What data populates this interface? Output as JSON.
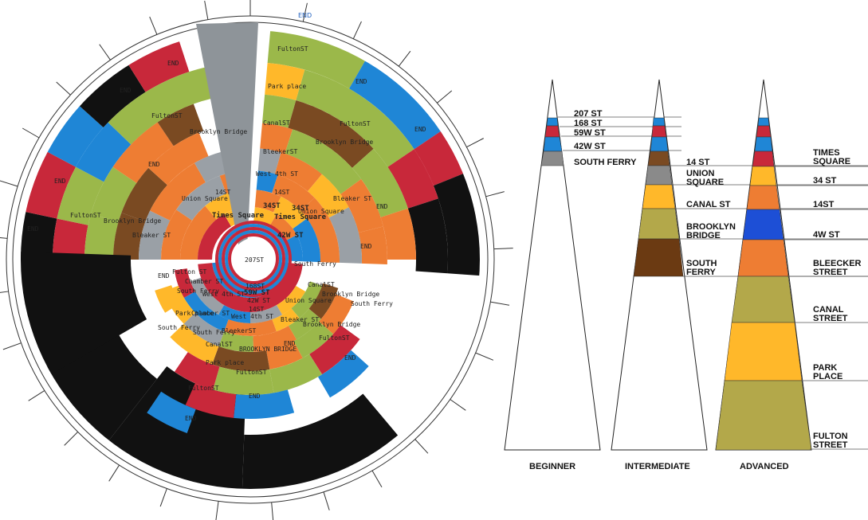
{
  "header_label": "END",
  "colors": {
    "red": "#c8283a",
    "blue": "#1f86d6",
    "green": "#9bb84a",
    "orange": "#ee7d33",
    "brown": "#7a4a22",
    "gray": "#9aa0a6",
    "yellow": "#ffb82a",
    "black": "#111111",
    "deepblue": "#1d4fd6",
    "olive": "#b3a84a",
    "darkbrown": "#6b3a12",
    "midgray": "#8a8a8a",
    "needle": "#8e9499"
  },
  "dial": {
    "center_label": "207ST",
    "rings_upper": {
      "ring1": [
        "Times Square",
        "34ST",
        "Times Square",
        "42W ST"
      ],
      "ring2": [
        "14ST",
        "14ST",
        "34ST"
      ],
      "ring3": [
        "Union Square",
        "West 4th ST",
        "Union Square"
      ],
      "ring4": [
        "Bleaker ST",
        "BleekerST",
        "Bleaker ST",
        "END"
      ],
      "ring5": [
        "Brooklyn Bridge",
        "END",
        "CanalST",
        "Brooklyn Bridge",
        "END"
      ],
      "ring6": [
        "FultonST",
        "Brooklyn Bridge",
        "FultonST",
        "END"
      ],
      "ring7": [
        "END",
        "FultonST",
        "Park place",
        "END"
      ],
      "ring8": [
        "END",
        "END",
        "FultonST",
        "END",
        "END"
      ]
    },
    "rings_lower": {
      "inner": [
        "168ST",
        "59W ST",
        "42W ST",
        "14ST",
        "South Ferry"
      ],
      "mid": [
        "Fulton ST",
        "Chamber ST",
        "South Ferry",
        "West 4th ST",
        "Union Square",
        "Bleaker ST",
        "CanalST",
        "Brooklyn Bridge",
        "South Ferry"
      ],
      "outer": [
        "END",
        "Park place",
        "Chamber ST",
        "South Ferry",
        "BleekerST",
        "CanalST",
        "BROOKLYN BRIDGE",
        "END",
        "Brooklyn Bridge",
        "FultonST",
        "END",
        "Park place",
        "FultonST",
        "FultonST",
        "END",
        "END"
      ]
    }
  },
  "cones": {
    "beginner": {
      "label": "BEGINNER",
      "stops": [
        "207 ST",
        "168 ST",
        "59W ST",
        "42W ST",
        "SOUTH FERRY"
      ]
    },
    "intermediate": {
      "label": "INTERMEDIATE",
      "stops": [
        "14 ST",
        "UNION SQUARE",
        "CANAL ST",
        "BROOKLYN BRIDGE",
        "SOUTH FERRY"
      ]
    },
    "advanced": {
      "label": "ADVANCED",
      "stops": [
        "TIMES SQUARE",
        "34 ST",
        "14ST",
        "4W ST",
        "BLEECKER STREET",
        "CANAL STREET",
        "PARK PLACE",
        "FULTON STREET"
      ]
    }
  }
}
